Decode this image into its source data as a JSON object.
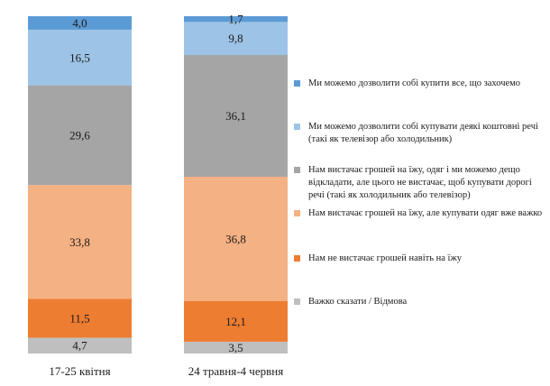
{
  "chart_data": {
    "type": "bar",
    "stacked": true,
    "categories": [
      "17-25 квітня",
      "24 травня-4 червня"
    ],
    "ylim": [
      0,
      100
    ],
    "series": [
      {
        "name": "Важко сказати / Відмова",
        "color": "#bfbfbf",
        "values": [
          4.7,
          3.5
        ],
        "labels": [
          "4,7",
          "3,5"
        ]
      },
      {
        "name": "Нам не вистачає грошей навіть на їжу",
        "color": "#ed7d31",
        "values": [
          11.5,
          12.1
        ],
        "labels": [
          "11,5",
          "12,1"
        ]
      },
      {
        "name": "Нам вистачає грошей на їжу, але купувати одяг вже важко",
        "color": "#f4b183",
        "values": [
          33.8,
          36.8
        ],
        "labels": [
          "33,8",
          "36,8"
        ]
      },
      {
        "name": "Нам вистачає грошей на їжу, одяг і ми можемо дещо відкладати, але цього не вистачає, щоб купувати дорогі речі (такі як холодильник або телевізор)",
        "color": "#a5a5a5",
        "values": [
          29.6,
          36.1
        ],
        "labels": [
          "29,6",
          "36,1"
        ]
      },
      {
        "name": "Ми можемо дозволити собі купувати деякі коштовні речі (такі як телевізор або холодильник)",
        "color": "#9dc3e6",
        "values": [
          16.5,
          9.8
        ],
        "labels": [
          "16,5",
          "9,8"
        ]
      },
      {
        "name": "Ми можемо дозволити собі купити все, що захочемо",
        "color": "#5b9bd5",
        "values": [
          4.0,
          1.7
        ],
        "labels": [
          "4,0",
          "1,7"
        ]
      }
    ],
    "legend_order": [
      5,
      4,
      3,
      2,
      1,
      0
    ],
    "legend_position": "right",
    "grid": false
  }
}
